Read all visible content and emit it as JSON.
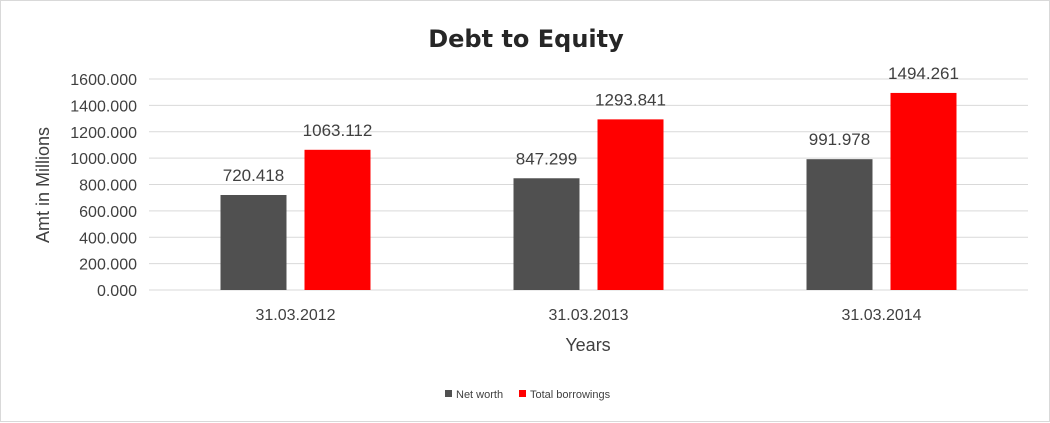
{
  "chart_data": {
    "type": "bar",
    "title": "Debt to Equity",
    "xlabel": "Years",
    "ylabel": "Amt in Millions",
    "categories": [
      "31.03.2012",
      "31.03.2013",
      "31.03.2014"
    ],
    "series": [
      {
        "name": "Net worth",
        "values": [
          720.418,
          847.299,
          991.978
        ],
        "labels": [
          "720.418",
          "847.299",
          "991.978"
        ],
        "color": "#505050"
      },
      {
        "name": "Total borrowings",
        "values": [
          1063.112,
          1293.841,
          1494.261
        ],
        "labels": [
          "1063.112",
          "1293.841",
          "1494.261"
        ],
        "color": "#ff0000"
      }
    ],
    "yticks": [
      "0.000",
      "200.000",
      "400.000",
      "600.000",
      "800.000",
      "1000.000",
      "1200.000",
      "1400.000",
      "1600.000"
    ],
    "ylim": [
      0,
      1600
    ],
    "grid": true,
    "legend": "bottom"
  }
}
